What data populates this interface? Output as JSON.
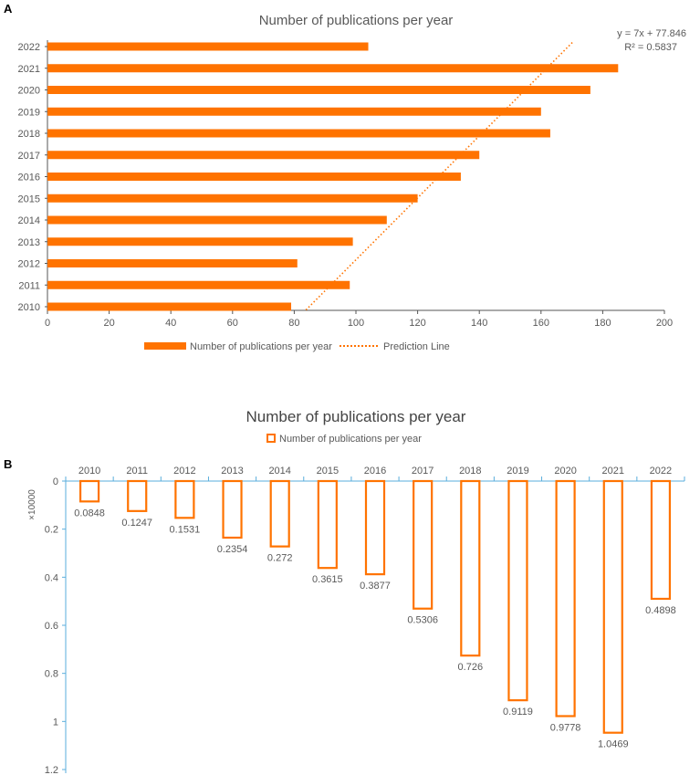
{
  "panel_labels": [
    "A",
    "B"
  ],
  "colors": {
    "bar": "#ff7300",
    "axis_a": "#555555",
    "axis_b": "#5aaedc",
    "text": "#595959"
  },
  "chart_data": [
    {
      "type": "bar",
      "orientation": "horizontal",
      "title": "Number of publications per year",
      "categories": [
        "2010",
        "2011",
        "2012",
        "2013",
        "2014",
        "2015",
        "2016",
        "2017",
        "2018",
        "2019",
        "2020",
        "2021",
        "2022"
      ],
      "series": [
        {
          "name": "Number of publications per year",
          "values": [
            79,
            98,
            81,
            99,
            110,
            120,
            134,
            140,
            163,
            160,
            176,
            185,
            104
          ]
        }
      ],
      "trendline": {
        "name": "Prediction Line",
        "slope": 7,
        "intercept": 77.846,
        "equation": "y = 7x + 77.846",
        "r2": "R² = 0.5837"
      },
      "xlim": [
        0,
        200
      ],
      "xticks": [
        0,
        20,
        40,
        60,
        80,
        100,
        120,
        140,
        160,
        180,
        200
      ],
      "legend": "bottom"
    },
    {
      "type": "bar",
      "orientation": "vertical-inverted",
      "title": "Number of publications per year",
      "categories": [
        "2010",
        "2011",
        "2012",
        "2013",
        "2014",
        "2015",
        "2016",
        "2017",
        "2018",
        "2019",
        "2020",
        "2021",
        "2022"
      ],
      "series": [
        {
          "name": "Number of publications per year",
          "values": [
            0.0848,
            0.1247,
            0.1531,
            0.2354,
            0.272,
            0.3615,
            0.3877,
            0.5306,
            0.726,
            0.9119,
            0.9778,
            1.0469,
            0.4898
          ]
        }
      ],
      "ylabel": "×10000",
      "ylim": [
        0,
        1.2
      ],
      "yticks": [
        "0",
        "0.2",
        "0.4",
        "0.6",
        "0.8",
        "1",
        "1.2"
      ],
      "legend": "top"
    }
  ]
}
